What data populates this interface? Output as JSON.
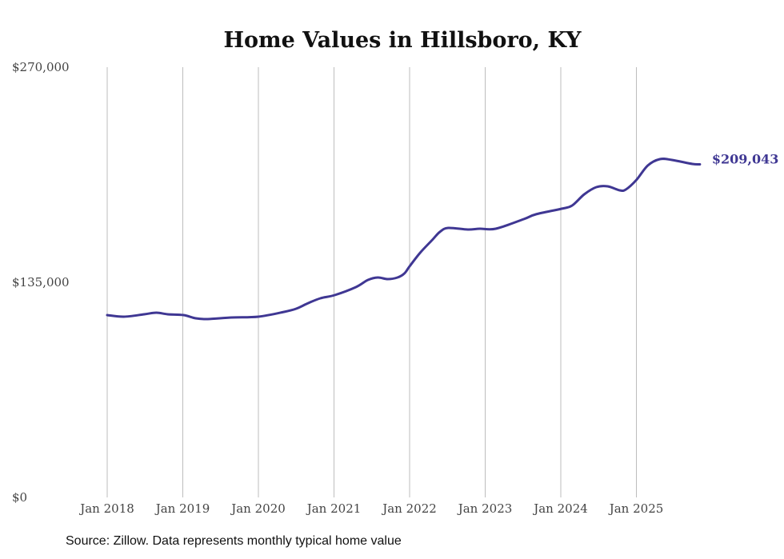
{
  "chart_data": {
    "type": "line",
    "title": "Home Values in Hillsboro, KY",
    "xlabel": "",
    "ylabel": "",
    "ylim": [
      0,
      270000
    ],
    "xlim": [
      2018,
      2025.84
    ],
    "y_ticks": [
      {
        "value": 0,
        "label": "$0"
      },
      {
        "value": 135000,
        "label": "$135,000"
      },
      {
        "value": 270000,
        "label": "$270,000"
      }
    ],
    "x_ticks": [
      {
        "value": 2018,
        "label": "Jan 2018"
      },
      {
        "value": 2019,
        "label": "Jan 2019"
      },
      {
        "value": 2020,
        "label": "Jan 2020"
      },
      {
        "value": 2021,
        "label": "Jan 2021"
      },
      {
        "value": 2022,
        "label": "Jan 2022"
      },
      {
        "value": 2023,
        "label": "Jan 2023"
      },
      {
        "value": 2024,
        "label": "Jan 2024"
      },
      {
        "value": 2025,
        "label": "Jan 2025"
      }
    ],
    "grid": "vertical",
    "series": [
      {
        "name": "Typical home value",
        "color": "#3f3793",
        "end_label": "$209,043",
        "x": [
          2018.0,
          2018.22,
          2018.49,
          2018.65,
          2018.8,
          2019.01,
          2019.17,
          2019.33,
          2019.65,
          2020.0,
          2020.34,
          2020.5,
          2020.66,
          2020.82,
          2021.01,
          2021.29,
          2021.45,
          2021.58,
          2021.71,
          2021.84,
          2021.93,
          2022.0,
          2022.14,
          2022.3,
          2022.4,
          2022.51,
          2022.77,
          2022.93,
          2023.14,
          2023.51,
          2023.67,
          2024.01,
          2024.15,
          2024.31,
          2024.47,
          2024.62,
          2024.78,
          2024.86,
          2025.0,
          2025.15,
          2025.31,
          2025.47,
          2025.74,
          2025.84
        ],
        "values": [
          114424,
          113420,
          114926,
          115930,
          114926,
          114424,
          112417,
          111915,
          112919,
          113420,
          116432,
          118439,
          121952,
          124963,
          126971,
          131989,
          136506,
          138011,
          137008,
          138011,
          140521,
          145038,
          153569,
          161599,
          166618,
          169127,
          168123,
          168625,
          168625,
          174647,
          177658,
          181171,
          183179,
          190205,
          194722,
          195224,
          192714,
          193216,
          199238,
          208271,
          212286,
          211785,
          209276,
          209043
        ]
      }
    ]
  },
  "source": "Source: Zillow. Data represents monthly typical home value"
}
